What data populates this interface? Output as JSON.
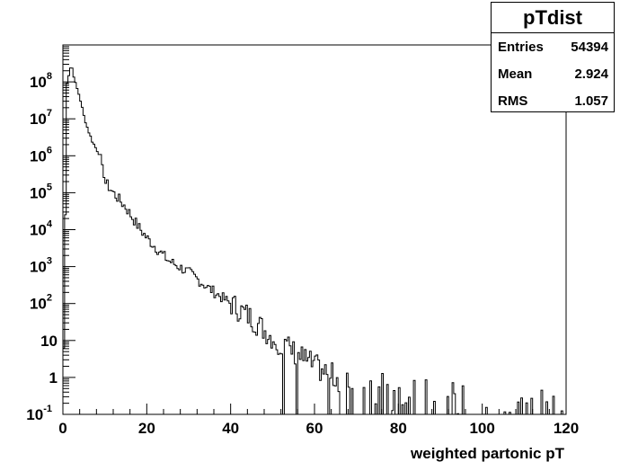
{
  "chart_data": {
    "type": "histogram",
    "title": "",
    "xlabel": "weighted partonic pT",
    "ylabel": "",
    "xlim": [
      0,
      120
    ],
    "ylim": [
      0.1,
      1000000000
    ],
    "log_y": true,
    "grid": false,
    "x_ticks": [
      0,
      20,
      40,
      60,
      80,
      100,
      120
    ],
    "y_ticks": [
      {
        "value": 0.1,
        "base": "10",
        "exp": "-1"
      },
      {
        "value": 1,
        "base": "1",
        "exp": ""
      },
      {
        "value": 10,
        "base": "10",
        "exp": ""
      },
      {
        "value": 100,
        "base": "10",
        "exp": "2"
      },
      {
        "value": 1000,
        "base": "10",
        "exp": "3"
      },
      {
        "value": 10000,
        "base": "10",
        "exp": "4"
      },
      {
        "value": 100000,
        "base": "10",
        "exp": "5"
      },
      {
        "value": 1000000,
        "base": "10",
        "exp": "6"
      },
      {
        "value": 10000000,
        "base": "10",
        "exp": "7"
      },
      {
        "value": 100000000,
        "base": "10",
        "exp": "8"
      }
    ],
    "series": [
      {
        "x": [
          0,
          1,
          2,
          3,
          4,
          5,
          6,
          7,
          8,
          9,
          10,
          12,
          15,
          18,
          20,
          25,
          30,
          35,
          40,
          45,
          50,
          55,
          60,
          65,
          70,
          75,
          80,
          90,
          100,
          110,
          115,
          120
        ],
        "y": [
          0,
          100000000,
          300000000,
          90000000,
          40000000,
          12000000,
          5000000,
          2500000,
          1500000,
          1000000,
          200000,
          100000,
          40000,
          12000,
          6000,
          1500,
          700,
          250,
          100,
          40,
          12,
          5,
          2,
          1,
          0.5,
          0.4,
          0.3,
          0.2,
          0.15,
          0.12,
          0.12,
          0.1
        ]
      }
    ]
  },
  "stats": {
    "title": "pTdist",
    "rows": [
      {
        "label": "Entries",
        "value": "54394"
      },
      {
        "label": "Mean",
        "value": "2.924"
      },
      {
        "label": "RMS",
        "value": "1.057"
      }
    ]
  }
}
